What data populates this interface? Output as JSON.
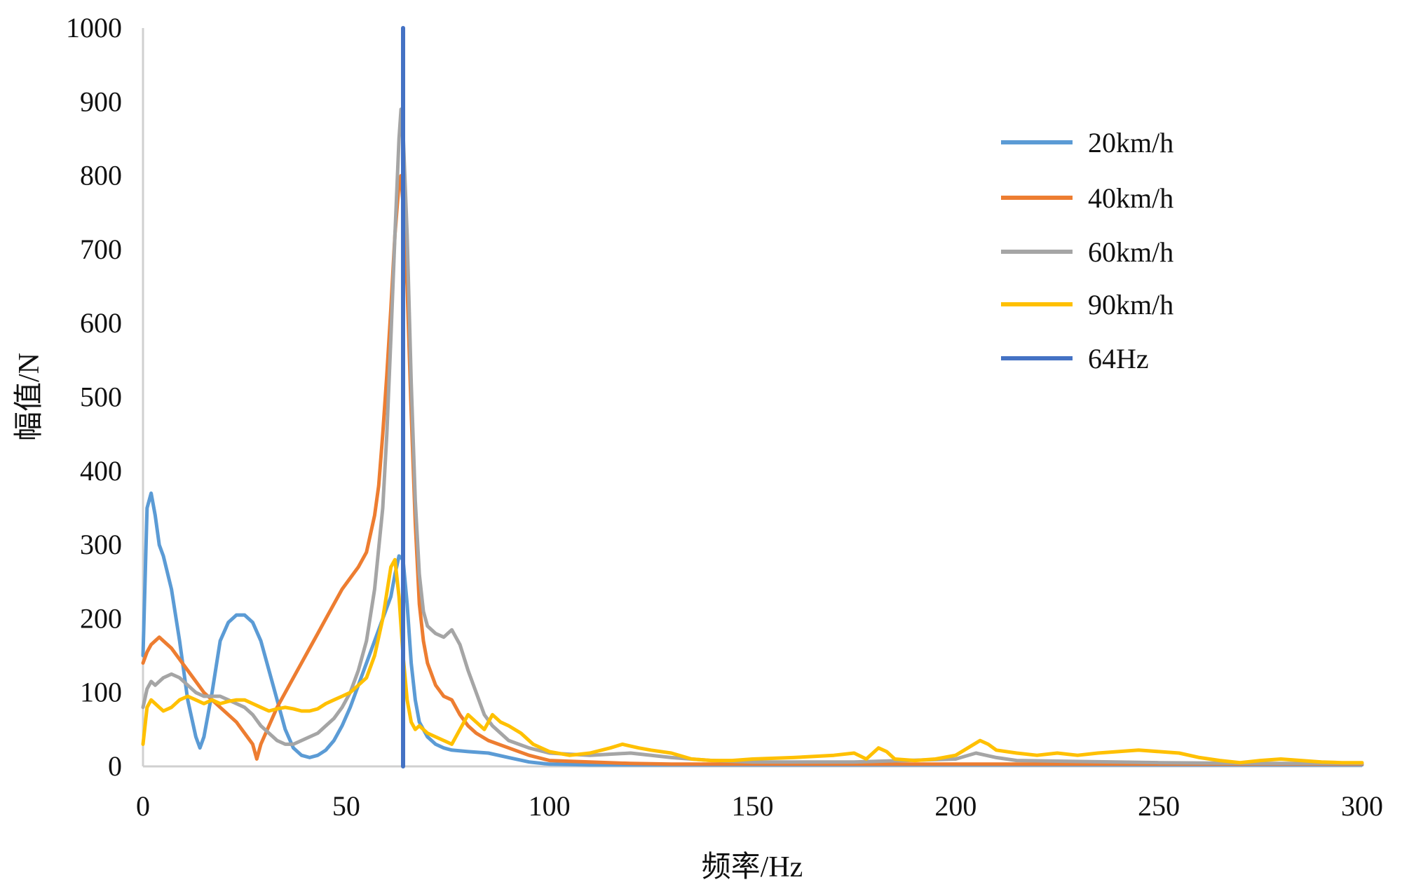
{
  "chart_data": {
    "type": "line",
    "title": "",
    "xlabel": "频率/Hz",
    "ylabel": "幅值/N",
    "xlim": [
      0,
      300
    ],
    "ylim": [
      0,
      1000
    ],
    "xticks": [
      0,
      50,
      100,
      150,
      200,
      250,
      300
    ],
    "yticks": [
      0,
      100,
      200,
      300,
      400,
      500,
      600,
      700,
      800,
      900,
      1000
    ],
    "grid": false,
    "legend_position": "top-right",
    "series": [
      {
        "name": "20km/h",
        "color": "#5B9BD5",
        "x": [
          0,
          1,
          2,
          3,
          4,
          5,
          7,
          9,
          11,
          13,
          14,
          15,
          17,
          19,
          21,
          23,
          25,
          27,
          29,
          31,
          33,
          35,
          37,
          39,
          41,
          43,
          45,
          47,
          49,
          51,
          53,
          55,
          57,
          59,
          61,
          62,
          63,
          64,
          65,
          66,
          67,
          68,
          70,
          72,
          74,
          76,
          80,
          85,
          90,
          95,
          100,
          110,
          120,
          130,
          140,
          150,
          200,
          250,
          300
        ],
        "y": [
          150,
          350,
          370,
          340,
          300,
          285,
          240,
          170,
          90,
          40,
          25,
          40,
          100,
          170,
          195,
          205,
          205,
          195,
          170,
          130,
          90,
          50,
          25,
          15,
          12,
          15,
          22,
          35,
          55,
          80,
          110,
          140,
          170,
          200,
          230,
          260,
          285,
          280,
          220,
          140,
          90,
          60,
          40,
          30,
          25,
          22,
          20,
          18,
          12,
          6,
          3,
          2,
          2,
          2,
          2,
          2,
          2,
          2,
          2
        ]
      },
      {
        "name": "40km/h",
        "color": "#ED7D31",
        "x": [
          0,
          1,
          2,
          3,
          4,
          5,
          7,
          9,
          11,
          13,
          15,
          17,
          19,
          21,
          23,
          25,
          27,
          28,
          29,
          31,
          33,
          35,
          37,
          39,
          41,
          43,
          45,
          47,
          49,
          51,
          53,
          55,
          57,
          58,
          59,
          60,
          61,
          62,
          63,
          63.5,
          64,
          65,
          66,
          67,
          68,
          69,
          70,
          72,
          74,
          76,
          78,
          80,
          82,
          85,
          90,
          95,
          100,
          110,
          120,
          130,
          140,
          150,
          175,
          200,
          225,
          250,
          275,
          300
        ],
        "y": [
          140,
          155,
          165,
          170,
          175,
          170,
          160,
          145,
          130,
          115,
          100,
          90,
          80,
          70,
          60,
          45,
          30,
          10,
          30,
          55,
          80,
          100,
          120,
          140,
          160,
          180,
          200,
          220,
          240,
          255,
          270,
          290,
          340,
          380,
          450,
          530,
          620,
          720,
          790,
          800,
          760,
          650,
          480,
          330,
          220,
          170,
          140,
          110,
          95,
          90,
          70,
          55,
          45,
          35,
          25,
          15,
          8,
          6,
          4,
          3,
          3,
          3,
          3,
          3,
          3,
          3,
          3,
          3
        ]
      },
      {
        "name": "60km/h",
        "color": "#A5A5A5",
        "x": [
          0,
          1,
          2,
          3,
          5,
          7,
          9,
          11,
          13,
          15,
          17,
          19,
          21,
          23,
          25,
          27,
          29,
          31,
          33,
          35,
          37,
          39,
          41,
          43,
          45,
          47,
          49,
          51,
          53,
          55,
          57,
          59,
          60,
          61,
          62,
          63,
          63.5,
          64,
          65,
          66,
          67,
          68,
          69,
          70,
          72,
          74,
          76,
          78,
          80,
          82,
          84,
          86,
          88,
          90,
          95,
          100,
          110,
          120,
          130,
          140,
          150,
          175,
          200,
          205,
          210,
          215,
          250,
          275,
          300
        ],
        "y": [
          80,
          105,
          115,
          110,
          120,
          125,
          120,
          110,
          100,
          95,
          95,
          95,
          90,
          85,
          80,
          70,
          55,
          45,
          35,
          30,
          30,
          35,
          40,
          45,
          55,
          65,
          80,
          100,
          130,
          170,
          240,
          350,
          450,
          580,
          720,
          850,
          890,
          860,
          720,
          520,
          360,
          260,
          210,
          190,
          180,
          175,
          185,
          165,
          130,
          100,
          70,
          55,
          45,
          35,
          25,
          18,
          15,
          18,
          12,
          8,
          6,
          6,
          10,
          18,
          12,
          8,
          5,
          4,
          4
        ]
      },
      {
        "name": "90km/h",
        "color": "#FFC000",
        "x": [
          0,
          1,
          2,
          3,
          4,
          5,
          7,
          9,
          11,
          13,
          15,
          17,
          19,
          21,
          23,
          25,
          27,
          29,
          31,
          33,
          35,
          37,
          39,
          41,
          43,
          45,
          47,
          49,
          51,
          53,
          55,
          57,
          59,
          61,
          62,
          63,
          64,
          65,
          66,
          67,
          68,
          70,
          72,
          74,
          76,
          78,
          80,
          82,
          84,
          86,
          88,
          90,
          93,
          96,
          100,
          105,
          110,
          115,
          118,
          122,
          125,
          130,
          135,
          140,
          145,
          150,
          160,
          170,
          175,
          178,
          181,
          183,
          185,
          190,
          195,
          200,
          203,
          206,
          208,
          210,
          215,
          220,
          225,
          230,
          235,
          240,
          245,
          250,
          255,
          260,
          265,
          270,
          275,
          280,
          285,
          290,
          295,
          300
        ],
        "y": [
          30,
          80,
          90,
          85,
          80,
          75,
          80,
          90,
          95,
          90,
          85,
          90,
          85,
          88,
          90,
          90,
          85,
          80,
          75,
          78,
          80,
          78,
          75,
          75,
          78,
          85,
          90,
          95,
          100,
          110,
          120,
          150,
          200,
          270,
          280,
          230,
          150,
          90,
          60,
          50,
          55,
          45,
          40,
          35,
          30,
          50,
          70,
          60,
          50,
          70,
          60,
          55,
          45,
          30,
          20,
          15,
          18,
          25,
          30,
          25,
          22,
          18,
          10,
          8,
          8,
          10,
          12,
          15,
          18,
          10,
          25,
          20,
          10,
          8,
          10,
          15,
          25,
          35,
          30,
          22,
          18,
          15,
          18,
          15,
          18,
          20,
          22,
          20,
          18,
          12,
          8,
          5,
          8,
          10,
          8,
          6,
          5,
          5
        ]
      },
      {
        "name": "64Hz",
        "color": "#4472C4",
        "x": [
          64,
          64
        ],
        "y": [
          0,
          1000
        ]
      }
    ]
  }
}
